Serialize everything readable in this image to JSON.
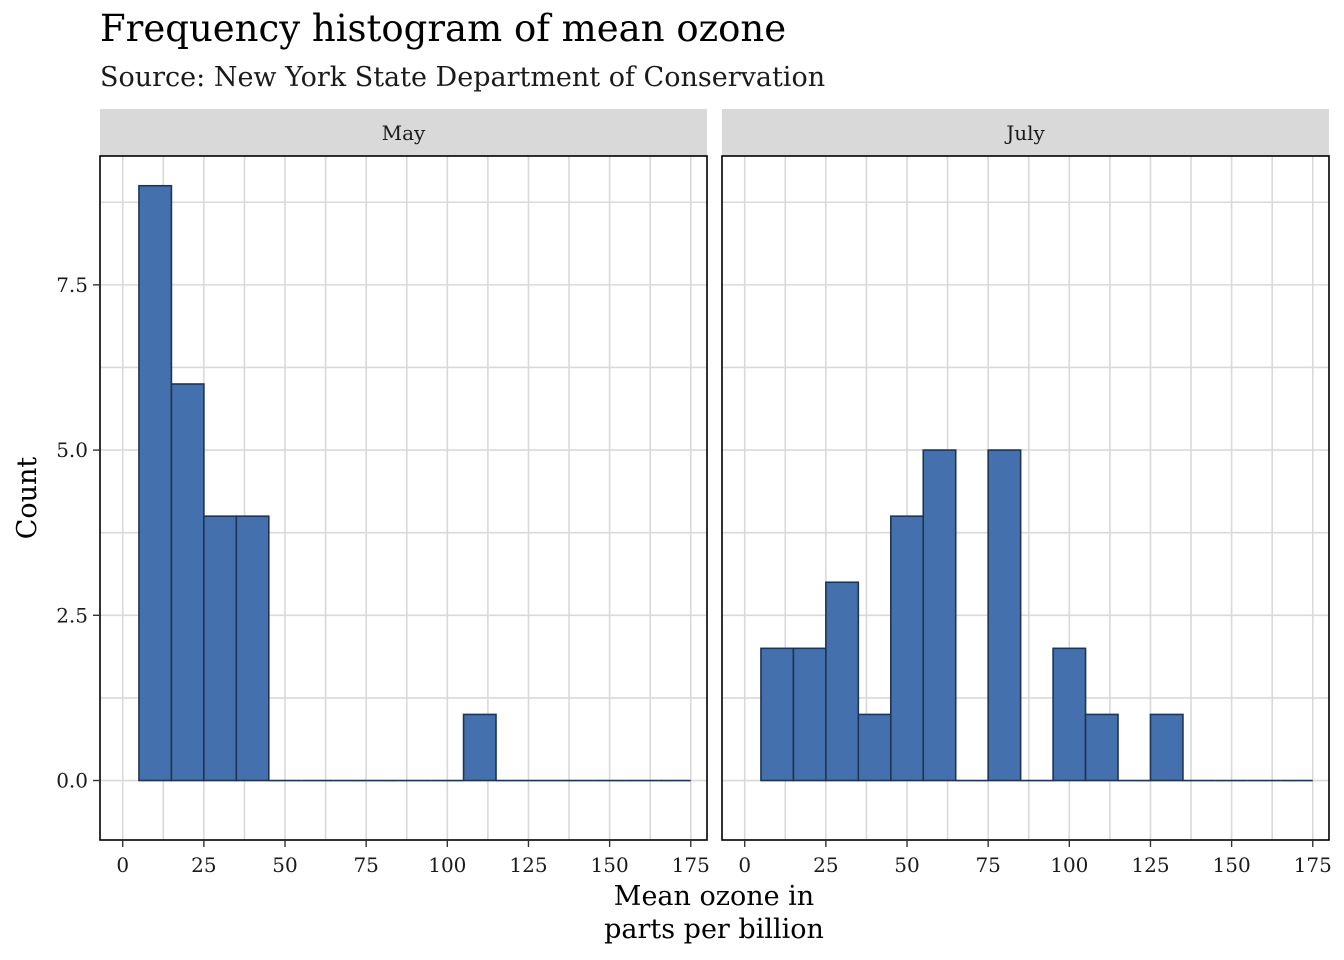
{
  "chart_data": {
    "type": "histogram",
    "title": "Frequency histogram of mean ozone",
    "subtitle": "Source: New York State Department of Conservation",
    "xlabel_lines": [
      "Mean ozone in",
      "parts per billion"
    ],
    "ylabel": "Count",
    "bin_width": 10,
    "bin_start": 5,
    "bin_end": 175,
    "xlim": [
      -7,
      180
    ],
    "ylim": [
      -0.9,
      9.45
    ],
    "x_ticks": [
      0,
      25,
      50,
      75,
      100,
      125,
      150,
      175
    ],
    "x_tick_labels": [
      "0",
      "25",
      "50",
      "75",
      "100",
      "125",
      "150",
      "175"
    ],
    "y_ticks": [
      0,
      2.5,
      5,
      7.5
    ],
    "y_tick_labels": [
      "0.0",
      "2.5",
      "5.0",
      "7.5"
    ],
    "fill_color": "#4471ad",
    "outline_color": "#1e3553",
    "panels": [
      {
        "name": "May",
        "bins": [
          {
            "x0": 5,
            "x1": 15,
            "count": 9
          },
          {
            "x0": 15,
            "x1": 25,
            "count": 6
          },
          {
            "x0": 25,
            "x1": 35,
            "count": 4
          },
          {
            "x0": 35,
            "x1": 45,
            "count": 4
          },
          {
            "x0": 45,
            "x1": 55,
            "count": 0
          },
          {
            "x0": 55,
            "x1": 65,
            "count": 0
          },
          {
            "x0": 65,
            "x1": 75,
            "count": 0
          },
          {
            "x0": 75,
            "x1": 85,
            "count": 0
          },
          {
            "x0": 85,
            "x1": 95,
            "count": 0
          },
          {
            "x0": 95,
            "x1": 105,
            "count": 0
          },
          {
            "x0": 105,
            "x1": 115,
            "count": 1
          },
          {
            "x0": 115,
            "x1": 125,
            "count": 0
          },
          {
            "x0": 125,
            "x1": 135,
            "count": 0
          },
          {
            "x0": 135,
            "x1": 145,
            "count": 0
          },
          {
            "x0": 145,
            "x1": 155,
            "count": 0
          },
          {
            "x0": 155,
            "x1": 165,
            "count": 0
          },
          {
            "x0": 165,
            "x1": 175,
            "count": 0
          }
        ]
      },
      {
        "name": "July",
        "bins": [
          {
            "x0": 5,
            "x1": 15,
            "count": 2
          },
          {
            "x0": 15,
            "x1": 25,
            "count": 2
          },
          {
            "x0": 25,
            "x1": 35,
            "count": 3
          },
          {
            "x0": 35,
            "x1": 45,
            "count": 1
          },
          {
            "x0": 45,
            "x1": 55,
            "count": 4
          },
          {
            "x0": 55,
            "x1": 65,
            "count": 5
          },
          {
            "x0": 65,
            "x1": 75,
            "count": 0
          },
          {
            "x0": 75,
            "x1": 85,
            "count": 5
          },
          {
            "x0": 85,
            "x1": 95,
            "count": 0
          },
          {
            "x0": 95,
            "x1": 105,
            "count": 2
          },
          {
            "x0": 105,
            "x1": 115,
            "count": 1
          },
          {
            "x0": 115,
            "x1": 125,
            "count": 0
          },
          {
            "x0": 125,
            "x1": 135,
            "count": 1
          },
          {
            "x0": 135,
            "x1": 145,
            "count": 0
          },
          {
            "x0": 145,
            "x1": 155,
            "count": 0
          },
          {
            "x0": 155,
            "x1": 165,
            "count": 0
          },
          {
            "x0": 165,
            "x1": 175,
            "count": 0
          }
        ]
      }
    ]
  }
}
